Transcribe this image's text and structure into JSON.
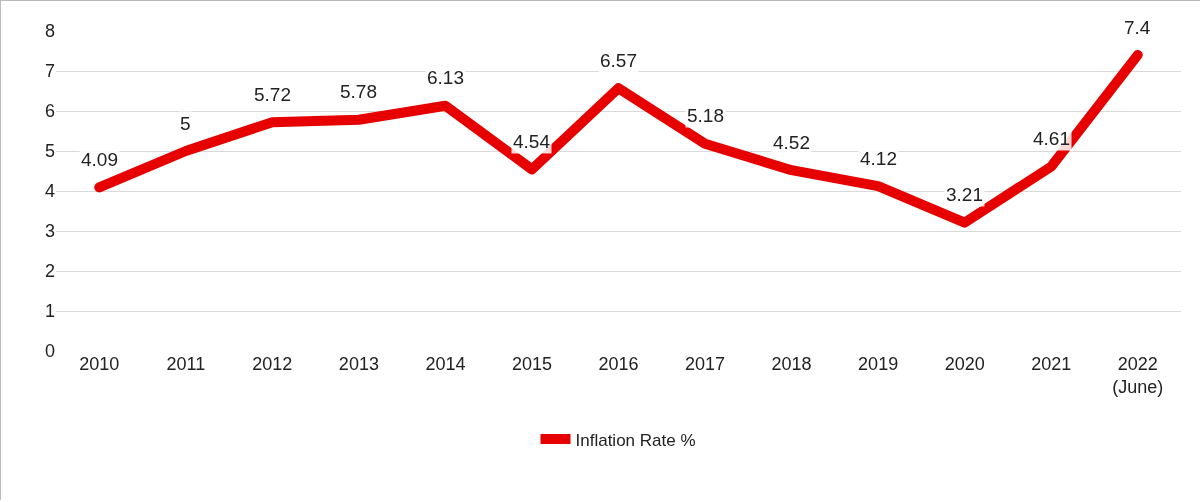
{
  "chart_data": {
    "type": "line",
    "categories": [
      "2010",
      "2011",
      "2012",
      "2013",
      "2014",
      "2015",
      "2016",
      "2017",
      "2018",
      "2019",
      "2020",
      "2021",
      "2022\n(June)"
    ],
    "series": [
      {
        "name": "Inflation Rate %",
        "color": "#e60000",
        "values": [
          4.09,
          5,
          5.72,
          5.78,
          6.13,
          4.54,
          6.57,
          5.18,
          4.52,
          4.12,
          3.21,
          4.61,
          7.4
        ]
      }
    ],
    "ylim": [
      0,
      8
    ],
    "yticks": [
      0,
      1,
      2,
      3,
      4,
      5,
      6,
      7,
      8
    ],
    "grid": "y",
    "legend": "bottom",
    "data_labels": true,
    "marker": "none",
    "line_style": "solid"
  }
}
